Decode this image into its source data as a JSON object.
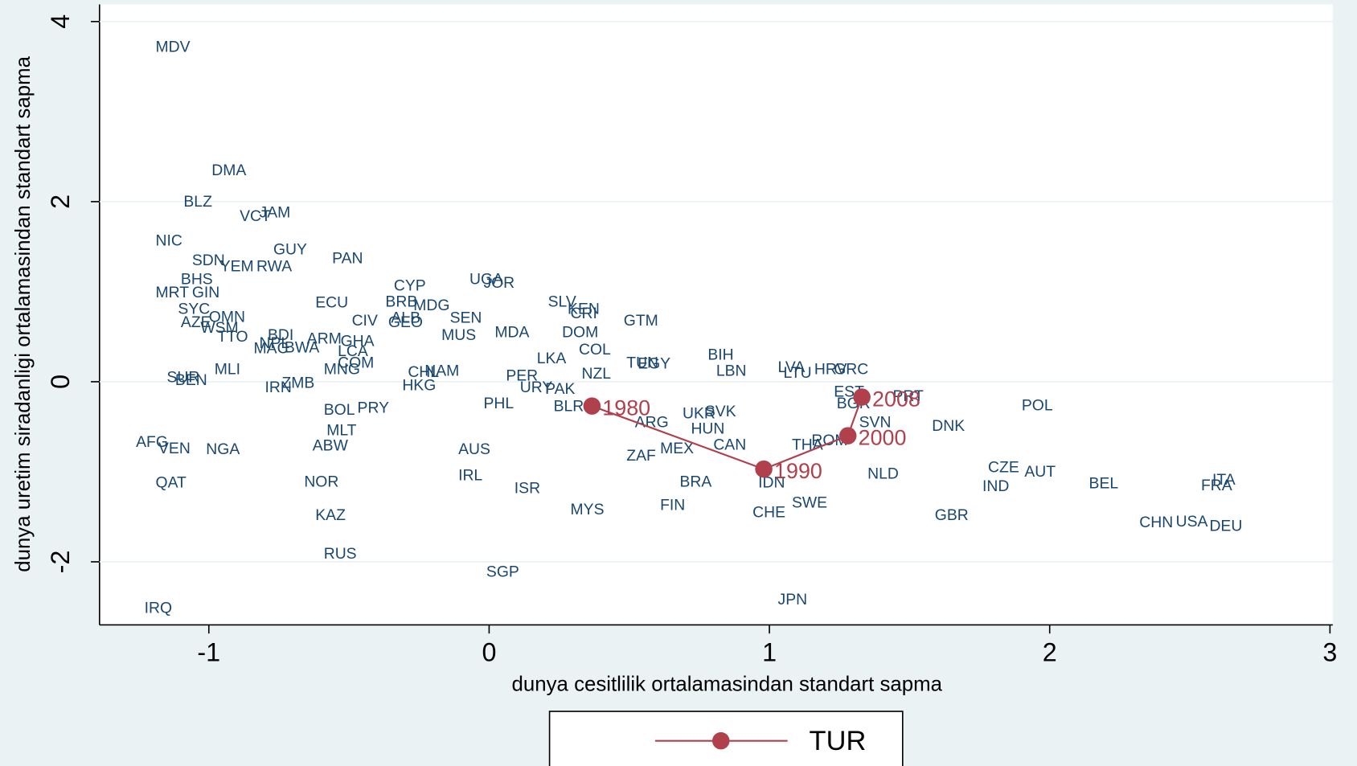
{
  "chart_data": {
    "type": "scatter",
    "x_label": "dunya cesitlilik ortalamasindan standart sapma",
    "y_label": "dunya uretim siradanligi ortalamasindan standart sapma",
    "xlim": [
      -1.39,
      3.01
    ],
    "ylim": [
      -2.7,
      4.19
    ],
    "xticks": [
      -1,
      0,
      1,
      2,
      3
    ],
    "yticks": [
      -2,
      0,
      2,
      4
    ],
    "grid": true,
    "color": "#1a476f",
    "labels": [
      "MDV",
      "DMA",
      "BLZ",
      "VCT",
      "JAM",
      "NIC",
      "GUY",
      "PAN",
      "SDN",
      "YEM",
      "RWA",
      "BHS",
      "MRT",
      "GIN",
      "CYP",
      "UGA",
      "JOR",
      "ECU",
      "BRB",
      "MDG",
      "SLV",
      "KEN",
      "CRI",
      "SYC",
      "OMN",
      "AZE",
      "GTM",
      "CIV",
      "ALB",
      "GEO",
      "SEN",
      "WSM",
      "MUS",
      "MDA",
      "DOM",
      "TTO",
      "BDI",
      "ARM",
      "GHA",
      "NPL",
      "MAC",
      "BWA",
      "LCA",
      "COL",
      "LKA",
      "BIH",
      "TUN",
      "EGY",
      "COM",
      "MLI",
      "LVA",
      "HRV",
      "GRC",
      "LBN",
      "LTU",
      "MNG",
      "NZL",
      "CHL",
      "NAM",
      "PER",
      "SUR",
      "BEN",
      "ZMB",
      "HKG",
      "URY",
      "PAK",
      "IRN",
      "PHL",
      "BOL",
      "PRY",
      "BLR",
      "UKR",
      "SVK",
      "EST",
      "BGR",
      "PRT",
      "POL",
      "ARG",
      "HUN",
      "SVN",
      "DNK",
      "MLT",
      "AFG",
      "VEN",
      "NGA",
      "ABW",
      "AUS",
      "MEX",
      "CAN",
      "THA",
      "ROM",
      "ZAF",
      "NLD",
      "CZE",
      "AUT",
      "IND",
      "BEL",
      "ITA",
      "FRA",
      "IRL",
      "QAT",
      "NOR",
      "ISR",
      "BRA",
      "IDN",
      "FIN",
      "SWE",
      "MYS",
      "CHE",
      "GBR",
      "KAZ",
      "CHN",
      "USA",
      "DEU",
      "RUS",
      "SGP",
      "JPN",
      "IRQ"
    ],
    "x": [
      -1.19,
      -0.99,
      -1.09,
      -0.89,
      -0.82,
      -1.19,
      -0.77,
      -0.56,
      -1.06,
      -0.96,
      -0.83,
      -1.1,
      -1.19,
      -1.06,
      -0.34,
      -0.07,
      -0.02,
      -0.62,
      -0.37,
      -0.27,
      0.21,
      0.28,
      0.29,
      -1.11,
      -1.0,
      -1.1,
      0.48,
      -0.49,
      -0.35,
      -0.36,
      -0.14,
      -1.03,
      -0.17,
      0.02,
      0.26,
      -0.97,
      -0.79,
      -0.65,
      -0.53,
      -0.82,
      -0.84,
      -0.73,
      -0.54,
      0.32,
      0.17,
      0.78,
      0.49,
      0.53,
      -0.54,
      -0.98,
      1.03,
      1.16,
      1.23,
      0.81,
      1.05,
      -0.59,
      0.33,
      -0.29,
      -0.23,
      0.06,
      -1.15,
      -1.12,
      -0.74,
      -0.31,
      0.11,
      0.2,
      -0.8,
      -0.02,
      -0.59,
      -0.47,
      0.23,
      0.69,
      0.77,
      1.23,
      1.24,
      1.44,
      1.9,
      0.52,
      0.72,
      1.32,
      1.58,
      -0.58,
      -1.26,
      -1.18,
      -1.01,
      -0.63,
      -0.11,
      0.61,
      0.8,
      1.08,
      1.15,
      0.49,
      1.35,
      1.78,
      1.91,
      1.76,
      2.14,
      2.58,
      2.54,
      -0.11,
      -1.19,
      -0.66,
      0.09,
      0.68,
      0.96,
      0.61,
      1.08,
      0.29,
      0.94,
      1.59,
      -0.62,
      2.32,
      2.45,
      2.57,
      -0.59,
      -0.01,
      1.03,
      -1.23
    ],
    "y": [
      3.71,
      2.34,
      1.99,
      1.83,
      1.87,
      1.56,
      1.46,
      1.36,
      1.34,
      1.27,
      1.27,
      1.13,
      0.98,
      0.98,
      1.06,
      1.13,
      1.09,
      0.87,
      0.88,
      0.84,
      0.88,
      0.8,
      0.75,
      0.8,
      0.71,
      0.65,
      0.67,
      0.67,
      0.7,
      0.65,
      0.7,
      0.59,
      0.51,
      0.54,
      0.54,
      0.49,
      0.51,
      0.47,
      0.44,
      0.42,
      0.36,
      0.37,
      0.33,
      0.35,
      0.25,
      0.29,
      0.2,
      0.19,
      0.2,
      0.13,
      0.15,
      0.13,
      0.13,
      0.11,
      0.09,
      0.13,
      0.08,
      0.1,
      0.11,
      0.06,
      0.04,
      0.01,
      -0.02,
      -0.05,
      -0.07,
      -0.09,
      -0.07,
      -0.25,
      -0.32,
      -0.3,
      -0.28,
      -0.36,
      -0.34,
      -0.12,
      -0.25,
      -0.17,
      -0.27,
      -0.46,
      -0.53,
      -0.46,
      -0.5,
      -0.55,
      -0.68,
      -0.75,
      -0.76,
      -0.72,
      -0.76,
      -0.75,
      -0.71,
      -0.71,
      -0.66,
      -0.83,
      -1.03,
      -0.96,
      -1.01,
      -1.17,
      -1.14,
      -1.1,
      -1.16,
      -1.05,
      -1.13,
      -1.12,
      -1.19,
      -1.12,
      -1.13,
      -1.38,
      -1.35,
      -1.43,
      -1.46,
      -1.49,
      -1.49,
      -1.57,
      -1.56,
      -1.61,
      -1.92,
      -2.12,
      -2.43,
      -2.52
    ],
    "series": [
      {
        "name": "TUR",
        "color": "#b0404c",
        "x": [
          0.367,
          0.98,
          1.28,
          1.33
        ],
        "y": [
          -0.27,
          -0.97,
          -0.6,
          -0.17
        ],
        "labels": [
          "1980",
          "1990",
          "2000",
          "2008"
        ]
      }
    ]
  }
}
